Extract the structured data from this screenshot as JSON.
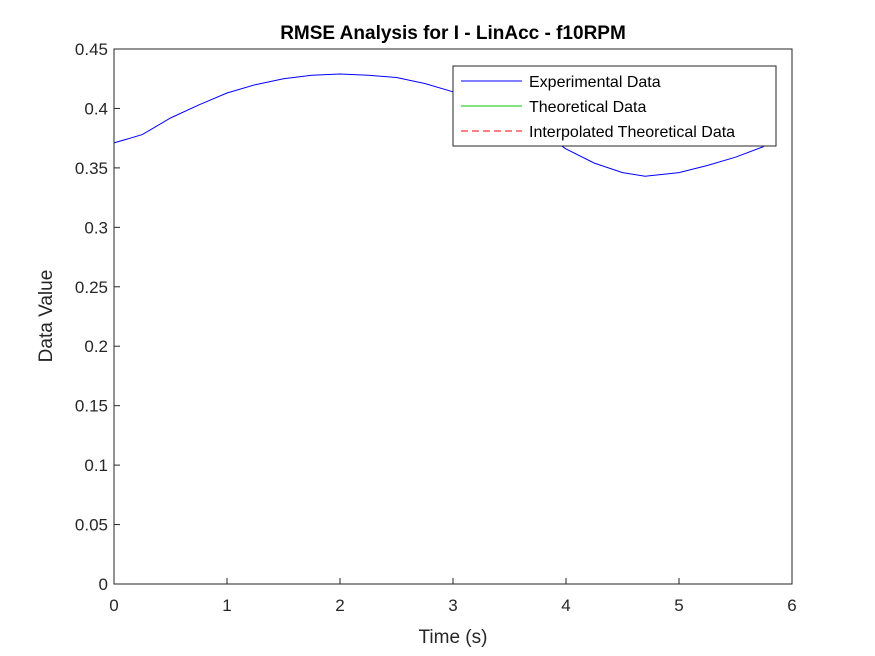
{
  "chart_data": {
    "type": "line",
    "title": "RMSE Analysis for I - LinAcc - f10RPM",
    "xlabel": "Time (s)",
    "ylabel": "Data Value",
    "xlim": [
      0,
      6
    ],
    "ylim": [
      0,
      0.45
    ],
    "xticks": [
      0,
      1,
      2,
      3,
      4,
      5,
      6
    ],
    "xtick_labels": [
      "0",
      "1",
      "2",
      "3",
      "4",
      "5",
      "6"
    ],
    "yticks": [
      0,
      0.05,
      0.1,
      0.15,
      0.2,
      0.25,
      0.3,
      0.35,
      0.4,
      0.45
    ],
    "ytick_labels": [
      "0",
      "0.05",
      "0.1",
      "0.15",
      "0.2",
      "0.25",
      "0.3",
      "0.35",
      "0.4",
      "0.45"
    ],
    "grid": false,
    "legend_position": "top-right",
    "series": [
      {
        "name": "Experimental Data",
        "color": "#0000ff",
        "style": "solid",
        "x": [
          0,
          0.25,
          0.5,
          0.75,
          1.0,
          1.25,
          1.5,
          1.75,
          2.0,
          2.25,
          2.5,
          2.75,
          3.0,
          3.25,
          3.5,
          3.75,
          4.0,
          4.25,
          4.5,
          4.7,
          5.0,
          5.25,
          5.5,
          5.75
        ],
        "y": [
          0.371,
          0.378,
          0.392,
          0.403,
          0.413,
          0.42,
          0.425,
          0.428,
          0.429,
          0.428,
          0.426,
          0.421,
          0.414,
          0.406,
          0.395,
          0.382,
          0.366,
          0.354,
          0.346,
          0.343,
          0.346,
          0.352,
          0.359,
          0.368
        ]
      },
      {
        "name": "Theoretical Data",
        "color": "#00c800",
        "style": "solid",
        "x": [
          0,
          6
        ],
        "y": [
          0,
          0
        ]
      },
      {
        "name": "Interpolated Theoretical Data",
        "color": "#ff0000",
        "style": "dashed",
        "x": [
          0,
          6
        ],
        "y": [
          0,
          0
        ]
      }
    ]
  }
}
